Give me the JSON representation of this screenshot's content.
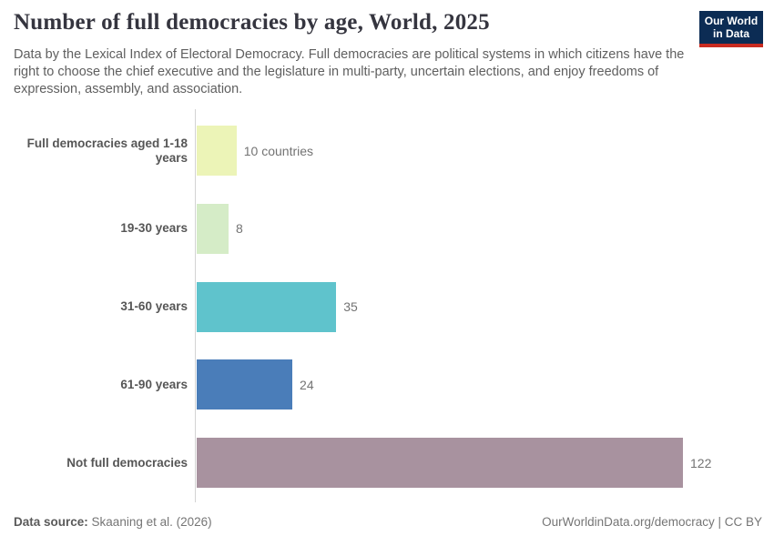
{
  "header": {
    "title": "Number of full democracies by age, World, 2025",
    "subtitle": "Data by the Lexical Index of Electoral Democracy. Full democracies are political systems in which citizens have the right to choose the chief executive and the legislature in multi-party, uncertain elections, and enjoy freedoms of expression, assembly, and association.",
    "logo": {
      "line1": "Our World",
      "line2": "in Data",
      "bg_color": "#0c2c54",
      "accent_color": "#c92b20"
    }
  },
  "chart_data": {
    "type": "bar",
    "orientation": "horizontal",
    "title": "Number of full democracies by age, World, 2025",
    "categories": [
      "Full democracies aged 1-18 years",
      "19-30 years",
      "31-60 years",
      "61-90 years",
      "Not full democracies"
    ],
    "values": [
      10,
      8,
      35,
      24,
      122
    ],
    "value_labels": [
      "10 countries",
      "8",
      "35",
      "24",
      "122"
    ],
    "colors": [
      "#ecf4b7",
      "#d5ecc7",
      "#5fc3cc",
      "#4a7db9",
      "#a8929f"
    ],
    "xlim": [
      0,
      122
    ],
    "grid": false,
    "axis_color": "#d3d3d3"
  },
  "footer": {
    "source_label": "Data source:",
    "source_value": "Skaaning et al. (2026)",
    "license": "OurWorldinData.org/democracy | CC BY"
  }
}
